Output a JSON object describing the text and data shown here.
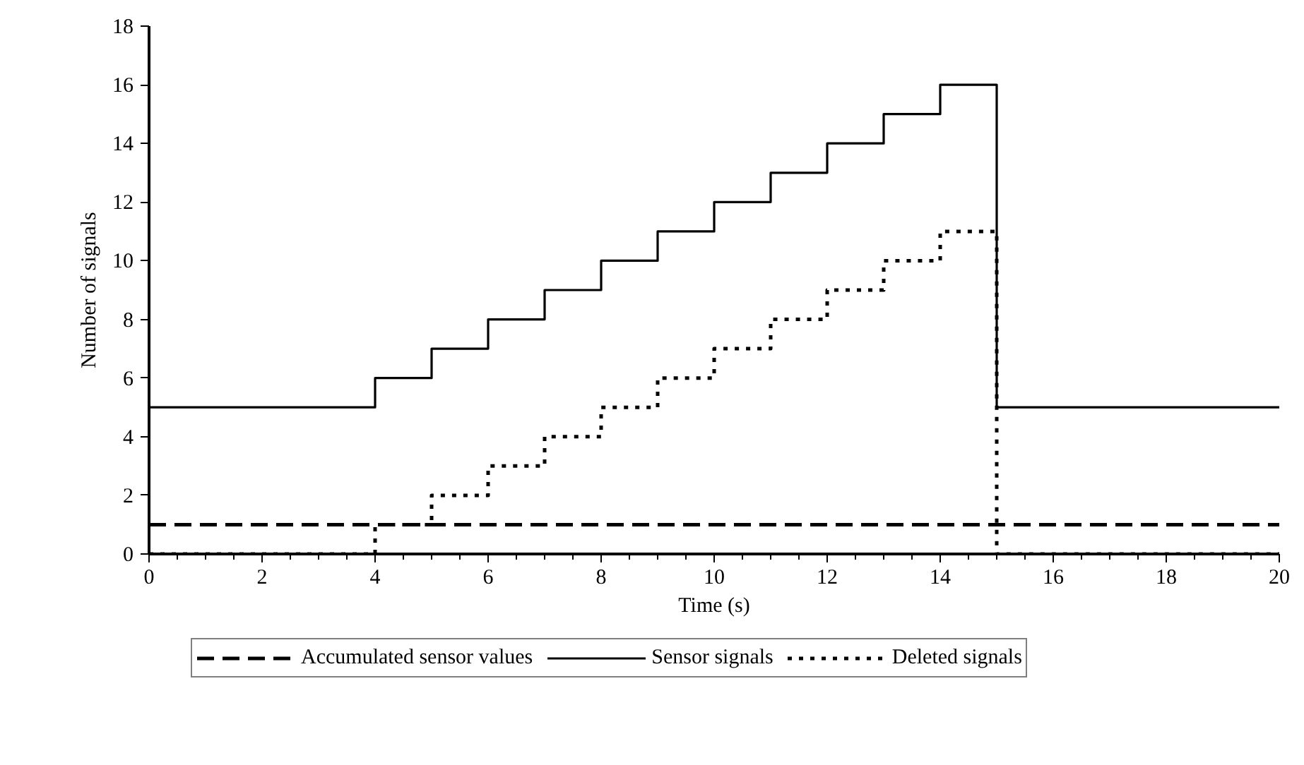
{
  "chart_data": {
    "type": "step",
    "xlabel": "Time (s)",
    "ylabel": "Number of signals",
    "x": [
      0,
      4,
      5,
      6,
      7,
      8,
      9,
      10,
      11,
      12,
      13,
      14,
      15,
      20
    ],
    "series": [
      {
        "name": "Accumulated sensor values",
        "color": "#000000",
        "line_style": "dashed",
        "values": [
          1,
          1,
          1,
          1,
          1,
          1,
          1,
          1,
          1,
          1,
          1,
          1,
          1,
          1
        ]
      },
      {
        "name": "Sensor signals",
        "color": "#000000",
        "line_style": "solid",
        "values": [
          5,
          6,
          7,
          8,
          9,
          10,
          11,
          12,
          13,
          14,
          15,
          16,
          5,
          5
        ]
      },
      {
        "name": "Deleted signals",
        "color": "#000000",
        "line_style": "dotted",
        "values": [
          0,
          1,
          2,
          3,
          4,
          5,
          6,
          7,
          8,
          9,
          10,
          11,
          0,
          0
        ]
      }
    ],
    "xlim": [
      0,
      20
    ],
    "ylim": [
      0,
      18
    ],
    "xticks": [
      0,
      2,
      4,
      6,
      8,
      10,
      12,
      14,
      16,
      18,
      20
    ],
    "yticks": [
      0,
      2,
      4,
      6,
      8,
      10,
      12,
      14,
      16,
      18
    ],
    "grid": false,
    "legend": "bottom"
  }
}
